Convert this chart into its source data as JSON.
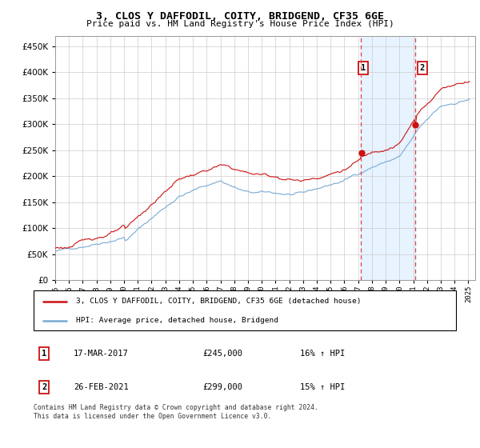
{
  "title": "3, CLOS Y DAFFODIL, COITY, BRIDGEND, CF35 6GE",
  "subtitle": "Price paid vs. HM Land Registry's House Price Index (HPI)",
  "legend_line1": "3, CLOS Y DAFFODIL, COITY, BRIDGEND, CF35 6GE (detached house)",
  "legend_line2": "HPI: Average price, detached house, Bridgend",
  "annotation1_label": "1",
  "annotation1_date": "17-MAR-2017",
  "annotation1_price": "£245,000",
  "annotation1_hpi": "16% ↑ HPI",
  "annotation2_label": "2",
  "annotation2_date": "26-FEB-2021",
  "annotation2_price": "£299,000",
  "annotation2_hpi": "15% ↑ HPI",
  "footnote": "Contains HM Land Registry data © Crown copyright and database right 2024.\nThis data is licensed under the Open Government Licence v3.0.",
  "sale1_year": 2017.21,
  "sale1_price": 245000,
  "sale2_year": 2021.15,
  "sale2_price": 299000,
  "hpi_color": "#7aaad4",
  "price_color": "#cc1111",
  "sale_marker_color": "#cc1111",
  "dashed_line_color": "#dd4444",
  "shaded_color": "#ddeeff",
  "ylim": [
    0,
    470000
  ],
  "yticks": [
    0,
    50000,
    100000,
    150000,
    200000,
    250000,
    300000,
    350000,
    400000,
    450000
  ],
  "xlim_start": 1995.0,
  "xlim_end": 2025.5,
  "xtick_years": [
    1995,
    1996,
    1997,
    1998,
    1999,
    2000,
    2001,
    2002,
    2003,
    2004,
    2005,
    2006,
    2007,
    2008,
    2009,
    2010,
    2011,
    2012,
    2013,
    2014,
    2015,
    2016,
    2017,
    2018,
    2019,
    2020,
    2021,
    2022,
    2023,
    2024,
    2025
  ],
  "noise_seed": 42,
  "noise_seed2": 123
}
